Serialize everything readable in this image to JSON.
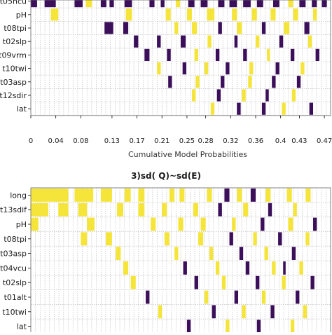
{
  "colors": {
    "purple": "#3b0f5a",
    "yellow": "#f5e43a",
    "grid": "#b8b8b8",
    "axis": "#000000",
    "text": "#1a1a1a"
  },
  "chart_data": [
    {
      "type": "heatmap",
      "title": "",
      "xlabel": "Cumulative Model Probabilities",
      "ylabel": "",
      "xlim": [
        0,
        0.48
      ],
      "ylim": [],
      "grid": true,
      "legend": "none",
      "x_ticks": [
        "0",
        "0.04",
        "0.08",
        "0.13",
        "0.17",
        "0.21",
        "0.25",
        "0.28",
        "0.32",
        "0.36",
        "0.4",
        "0.43",
        "0.47"
      ],
      "x_tick_values": [
        0,
        0.04,
        0.08,
        0.13,
        0.17,
        0.21,
        0.25,
        0.28,
        0.32,
        0.36,
        0.4,
        0.43,
        0.47
      ],
      "rows": [
        "t05hcu",
        "pH",
        "t08tpi",
        "t02slp",
        "t09vrm",
        "t10twi",
        "t03asp",
        "t12sdir",
        "lat"
      ],
      "cells": [
        {
          "row": 0,
          "x0": 0.0,
          "x1": 0.01,
          "v": "P"
        },
        {
          "row": 0,
          "x0": 0.022,
          "x1": 0.04,
          "v": "P"
        },
        {
          "row": 0,
          "x0": 0.07,
          "x1": 0.083,
          "v": "P"
        },
        {
          "row": 0,
          "x0": 0.088,
          "x1": 0.098,
          "v": "Y"
        },
        {
          "row": 0,
          "x0": 0.112,
          "x1": 0.121,
          "v": "P"
        },
        {
          "row": 0,
          "x0": 0.126,
          "x1": 0.133,
          "v": "P"
        },
        {
          "row": 0,
          "x0": 0.15,
          "x1": 0.162,
          "v": "P"
        },
        {
          "row": 0,
          "x0": 0.19,
          "x1": 0.198,
          "v": "P"
        },
        {
          "row": 0,
          "x0": 0.208,
          "x1": 0.214,
          "v": "P"
        },
        {
          "row": 0,
          "x0": 0.232,
          "x1": 0.239,
          "v": "Y"
        },
        {
          "row": 0,
          "x0": 0.252,
          "x1": 0.262,
          "v": "P"
        },
        {
          "row": 0,
          "x0": 0.272,
          "x1": 0.283,
          "v": "P"
        },
        {
          "row": 0,
          "x0": 0.3,
          "x1": 0.31,
          "v": "P"
        },
        {
          "row": 0,
          "x0": 0.318,
          "x1": 0.33,
          "v": "P"
        },
        {
          "row": 0,
          "x0": 0.34,
          "x1": 0.352,
          "v": "P"
        },
        {
          "row": 0,
          "x0": 0.362,
          "x1": 0.372,
          "v": "P"
        },
        {
          "row": 0,
          "x0": 0.388,
          "x1": 0.398,
          "v": "P"
        },
        {
          "row": 0,
          "x0": 0.412,
          "x1": 0.42,
          "v": "Y"
        },
        {
          "row": 0,
          "x0": 0.43,
          "x1": 0.44,
          "v": "P"
        },
        {
          "row": 0,
          "x0": 0.45,
          "x1": 0.458,
          "v": "P"
        },
        {
          "row": 0,
          "x0": 0.466,
          "x1": 0.474,
          "v": "P"
        },
        {
          "row": 1,
          "x0": 0.032,
          "x1": 0.044,
          "v": "Y"
        },
        {
          "row": 1,
          "x0": 0.152,
          "x1": 0.162,
          "v": "Y"
        },
        {
          "row": 1,
          "x0": 0.216,
          "x1": 0.224,
          "v": "Y"
        },
        {
          "row": 1,
          "x0": 0.25,
          "x1": 0.258,
          "v": "Y"
        },
        {
          "row": 1,
          "x0": 0.282,
          "x1": 0.294,
          "v": "Y"
        },
        {
          "row": 1,
          "x0": 0.322,
          "x1": 0.33,
          "v": "Y"
        },
        {
          "row": 1,
          "x0": 0.354,
          "x1": 0.362,
          "v": "Y"
        },
        {
          "row": 1,
          "x0": 0.384,
          "x1": 0.392,
          "v": "Y"
        },
        {
          "row": 1,
          "x0": 0.42,
          "x1": 0.428,
          "v": "Y"
        },
        {
          "row": 1,
          "x0": 0.452,
          "x1": 0.458,
          "v": "Y"
        },
        {
          "row": 2,
          "x0": 0.118,
          "x1": 0.132,
          "v": "P"
        },
        {
          "row": 2,
          "x0": 0.148,
          "x1": 0.156,
          "v": "P"
        },
        {
          "row": 2,
          "x0": 0.23,
          "x1": 0.236,
          "v": "Y"
        },
        {
          "row": 2,
          "x0": 0.258,
          "x1": 0.266,
          "v": "Y"
        },
        {
          "row": 2,
          "x0": 0.3,
          "x1": 0.306,
          "v": "P"
        },
        {
          "row": 2,
          "x0": 0.33,
          "x1": 0.338,
          "v": "Y"
        },
        {
          "row": 2,
          "x0": 0.37,
          "x1": 0.376,
          "v": "P"
        },
        {
          "row": 2,
          "x0": 0.405,
          "x1": 0.414,
          "v": "Y"
        },
        {
          "row": 2,
          "x0": 0.438,
          "x1": 0.446,
          "v": "P"
        },
        {
          "row": 3,
          "x0": 0.165,
          "x1": 0.172,
          "v": "P"
        },
        {
          "row": 3,
          "x0": 0.202,
          "x1": 0.208,
          "v": "P"
        },
        {
          "row": 3,
          "x0": 0.24,
          "x1": 0.248,
          "v": "P"
        },
        {
          "row": 3,
          "x0": 0.283,
          "x1": 0.289,
          "v": "Y"
        },
        {
          "row": 3,
          "x0": 0.326,
          "x1": 0.331,
          "v": "P"
        },
        {
          "row": 3,
          "x0": 0.36,
          "x1": 0.366,
          "v": "Y"
        },
        {
          "row": 3,
          "x0": 0.398,
          "x1": 0.404,
          "v": "P"
        },
        {
          "row": 3,
          "x0": 0.444,
          "x1": 0.45,
          "v": "Y"
        },
        {
          "row": 4,
          "x0": 0.182,
          "x1": 0.19,
          "v": "P"
        },
        {
          "row": 4,
          "x0": 0.218,
          "x1": 0.224,
          "v": "P"
        },
        {
          "row": 4,
          "x0": 0.262,
          "x1": 0.268,
          "v": "Y"
        },
        {
          "row": 4,
          "x0": 0.296,
          "x1": 0.302,
          "v": "P"
        },
        {
          "row": 4,
          "x0": 0.34,
          "x1": 0.346,
          "v": "P"
        },
        {
          "row": 4,
          "x0": 0.378,
          "x1": 0.383,
          "v": "Y"
        },
        {
          "row": 4,
          "x0": 0.416,
          "x1": 0.422,
          "v": "P"
        },
        {
          "row": 4,
          "x0": 0.456,
          "x1": 0.462,
          "v": "P"
        },
        {
          "row": 5,
          "x0": 0.202,
          "x1": 0.208,
          "v": "Y"
        },
        {
          "row": 5,
          "x0": 0.243,
          "x1": 0.249,
          "v": "P"
        },
        {
          "row": 5,
          "x0": 0.278,
          "x1": 0.284,
          "v": "Y"
        },
        {
          "row": 5,
          "x0": 0.312,
          "x1": 0.318,
          "v": "P"
        },
        {
          "row": 5,
          "x0": 0.35,
          "x1": 0.356,
          "v": "Y"
        },
        {
          "row": 5,
          "x0": 0.392,
          "x1": 0.398,
          "v": "P"
        },
        {
          "row": 5,
          "x0": 0.432,
          "x1": 0.438,
          "v": "Y"
        },
        {
          "row": 6,
          "x0": 0.22,
          "x1": 0.226,
          "v": "P"
        },
        {
          "row": 6,
          "x0": 0.264,
          "x1": 0.27,
          "v": "Y"
        },
        {
          "row": 6,
          "x0": 0.304,
          "x1": 0.31,
          "v": "P"
        },
        {
          "row": 6,
          "x0": 0.348,
          "x1": 0.354,
          "v": "Y"
        },
        {
          "row": 6,
          "x0": 0.386,
          "x1": 0.392,
          "v": "P"
        },
        {
          "row": 6,
          "x0": 0.426,
          "x1": 0.432,
          "v": "P"
        },
        {
          "row": 7,
          "x0": 0.258,
          "x1": 0.264,
          "v": "Y"
        },
        {
          "row": 7,
          "x0": 0.298,
          "x1": 0.304,
          "v": "P"
        },
        {
          "row": 7,
          "x0": 0.338,
          "x1": 0.344,
          "v": "Y"
        },
        {
          "row": 7,
          "x0": 0.376,
          "x1": 0.381,
          "v": "P"
        },
        {
          "row": 7,
          "x0": 0.418,
          "x1": 0.424,
          "v": "Y"
        },
        {
          "row": 8,
          "x0": 0.288,
          "x1": 0.294,
          "v": "Y"
        },
        {
          "row": 8,
          "x0": 0.33,
          "x1": 0.336,
          "v": "P"
        },
        {
          "row": 8,
          "x0": 0.37,
          "x1": 0.376,
          "v": "P"
        },
        {
          "row": 8,
          "x0": 0.402,
          "x1": 0.408,
          "v": "Y"
        },
        {
          "row": 8,
          "x0": 0.446,
          "x1": 0.452,
          "v": "P"
        }
      ]
    },
    {
      "type": "heatmap",
      "title": "3)sd( Q)~sd(E)",
      "xlabel": "",
      "ylabel": "",
      "xlim": [
        0,
        0.48
      ],
      "ylim": [],
      "grid": true,
      "legend": "none",
      "x_ticks": [],
      "rows": [
        "long",
        "t13sdif",
        "pH",
        "t08tpi",
        "t03asp",
        "t04vcu",
        "t02slp",
        "t01alt",
        "t10twi",
        "lat"
      ],
      "cells": [
        {
          "row": 0,
          "x0": 0.0,
          "x1": 0.06,
          "v": "Y"
        },
        {
          "row": 0,
          "x0": 0.07,
          "x1": 0.1,
          "v": "Y"
        },
        {
          "row": 0,
          "x0": 0.112,
          "x1": 0.13,
          "v": "Y"
        },
        {
          "row": 0,
          "x0": 0.15,
          "x1": 0.16,
          "v": "Y"
        },
        {
          "row": 0,
          "x0": 0.172,
          "x1": 0.182,
          "v": "Y"
        },
        {
          "row": 0,
          "x0": 0.222,
          "x1": 0.23,
          "v": "Y"
        },
        {
          "row": 0,
          "x0": 0.238,
          "x1": 0.246,
          "v": "Y"
        },
        {
          "row": 0,
          "x0": 0.282,
          "x1": 0.29,
          "v": "Y"
        },
        {
          "row": 0,
          "x0": 0.31,
          "x1": 0.318,
          "v": "P"
        },
        {
          "row": 0,
          "x0": 0.33,
          "x1": 0.338,
          "v": "Y"
        },
        {
          "row": 0,
          "x0": 0.352,
          "x1": 0.36,
          "v": "P"
        },
        {
          "row": 0,
          "x0": 0.376,
          "x1": 0.384,
          "v": "Y"
        },
        {
          "row": 0,
          "x0": 0.41,
          "x1": 0.418,
          "v": "Y"
        },
        {
          "row": 0,
          "x0": 0.44,
          "x1": 0.448,
          "v": "Y"
        },
        {
          "row": 1,
          "x0": 0.0,
          "x1": 0.028,
          "v": "Y"
        },
        {
          "row": 1,
          "x0": 0.044,
          "x1": 0.06,
          "v": "Y"
        },
        {
          "row": 1,
          "x0": 0.076,
          "x1": 0.09,
          "v": "Y"
        },
        {
          "row": 1,
          "x0": 0.138,
          "x1": 0.148,
          "v": "Y"
        },
        {
          "row": 1,
          "x0": 0.172,
          "x1": 0.182,
          "v": "Y"
        },
        {
          "row": 1,
          "x0": 0.21,
          "x1": 0.218,
          "v": "Y"
        },
        {
          "row": 1,
          "x0": 0.26,
          "x1": 0.268,
          "v": "Y"
        },
        {
          "row": 1,
          "x0": 0.3,
          "x1": 0.306,
          "v": "P"
        },
        {
          "row": 1,
          "x0": 0.34,
          "x1": 0.348,
          "v": "Y"
        },
        {
          "row": 1,
          "x0": 0.38,
          "x1": 0.386,
          "v": "P"
        },
        {
          "row": 1,
          "x0": 0.42,
          "x1": 0.426,
          "v": "Y"
        },
        {
          "row": 2,
          "x0": 0.0,
          "x1": 0.012,
          "v": "Y"
        },
        {
          "row": 2,
          "x0": 0.09,
          "x1": 0.102,
          "v": "Y"
        },
        {
          "row": 2,
          "x0": 0.192,
          "x1": 0.2,
          "v": "Y"
        },
        {
          "row": 2,
          "x0": 0.236,
          "x1": 0.244,
          "v": "Y"
        },
        {
          "row": 2,
          "x0": 0.272,
          "x1": 0.28,
          "v": "Y"
        },
        {
          "row": 2,
          "x0": 0.322,
          "x1": 0.328,
          "v": "Y"
        },
        {
          "row": 2,
          "x0": 0.368,
          "x1": 0.374,
          "v": "P"
        },
        {
          "row": 2,
          "x0": 0.412,
          "x1": 0.42,
          "v": "Y"
        },
        {
          "row": 2,
          "x0": 0.452,
          "x1": 0.458,
          "v": "P"
        },
        {
          "row": 3,
          "x0": 0.08,
          "x1": 0.09,
          "v": "Y"
        },
        {
          "row": 3,
          "x0": 0.12,
          "x1": 0.13,
          "v": "Y"
        },
        {
          "row": 3,
          "x0": 0.214,
          "x1": 0.222,
          "v": "Y"
        },
        {
          "row": 3,
          "x0": 0.268,
          "x1": 0.276,
          "v": "Y"
        },
        {
          "row": 3,
          "x0": 0.318,
          "x1": 0.324,
          "v": "P"
        },
        {
          "row": 3,
          "x0": 0.356,
          "x1": 0.362,
          "v": "Y"
        },
        {
          "row": 3,
          "x0": 0.396,
          "x1": 0.402,
          "v": "P"
        },
        {
          "row": 3,
          "x0": 0.44,
          "x1": 0.446,
          "v": "Y"
        },
        {
          "row": 4,
          "x0": 0.136,
          "x1": 0.144,
          "v": "Y"
        },
        {
          "row": 4,
          "x0": 0.23,
          "x1": 0.236,
          "v": "Y"
        },
        {
          "row": 4,
          "x0": 0.286,
          "x1": 0.292,
          "v": "Y"
        },
        {
          "row": 4,
          "x0": 0.334,
          "x1": 0.34,
          "v": "P"
        },
        {
          "row": 4,
          "x0": 0.374,
          "x1": 0.38,
          "v": "Y"
        },
        {
          "row": 4,
          "x0": 0.418,
          "x1": 0.424,
          "v": "P"
        },
        {
          "row": 5,
          "x0": 0.148,
          "x1": 0.156,
          "v": "Y"
        },
        {
          "row": 5,
          "x0": 0.244,
          "x1": 0.25,
          "v": "P"
        },
        {
          "row": 5,
          "x0": 0.296,
          "x1": 0.302,
          "v": "Y"
        },
        {
          "row": 5,
          "x0": 0.344,
          "x1": 0.35,
          "v": "P"
        },
        {
          "row": 5,
          "x0": 0.386,
          "x1": 0.392,
          "v": "Y"
        },
        {
          "row": 5,
          "x0": 0.404,
          "x1": 0.408,
          "v": "P"
        },
        {
          "row": 5,
          "x0": 0.43,
          "x1": 0.436,
          "v": "Y"
        },
        {
          "row": 6,
          "x0": 0.16,
          "x1": 0.168,
          "v": "Y"
        },
        {
          "row": 6,
          "x0": 0.262,
          "x1": 0.268,
          "v": "P"
        },
        {
          "row": 6,
          "x0": 0.306,
          "x1": 0.312,
          "v": "Y"
        },
        {
          "row": 6,
          "x0": 0.36,
          "x1": 0.366,
          "v": "P"
        },
        {
          "row": 6,
          "x0": 0.402,
          "x1": 0.408,
          "v": "Y"
        },
        {
          "row": 6,
          "x0": 0.448,
          "x1": 0.454,
          "v": "P"
        },
        {
          "row": 7,
          "x0": 0.184,
          "x1": 0.19,
          "v": "P"
        },
        {
          "row": 7,
          "x0": 0.278,
          "x1": 0.284,
          "v": "Y"
        },
        {
          "row": 7,
          "x0": 0.326,
          "x1": 0.332,
          "v": "P"
        },
        {
          "row": 7,
          "x0": 0.37,
          "x1": 0.376,
          "v": "Y"
        },
        {
          "row": 7,
          "x0": 0.424,
          "x1": 0.43,
          "v": "P"
        },
        {
          "row": 8,
          "x0": 0.204,
          "x1": 0.21,
          "v": "Y"
        },
        {
          "row": 8,
          "x0": 0.29,
          "x1": 0.296,
          "v": "P"
        },
        {
          "row": 8,
          "x0": 0.338,
          "x1": 0.344,
          "v": "Y"
        },
        {
          "row": 8,
          "x0": 0.384,
          "x1": 0.39,
          "v": "P"
        },
        {
          "row": 8,
          "x0": 0.436,
          "x1": 0.442,
          "v": "Y"
        },
        {
          "row": 9,
          "x0": 0.25,
          "x1": 0.256,
          "v": "P"
        },
        {
          "row": 9,
          "x0": 0.312,
          "x1": 0.318,
          "v": "Y"
        },
        {
          "row": 9,
          "x0": 0.362,
          "x1": 0.368,
          "v": "P"
        },
        {
          "row": 9,
          "x0": 0.416,
          "x1": 0.422,
          "v": "Y"
        }
      ]
    }
  ]
}
